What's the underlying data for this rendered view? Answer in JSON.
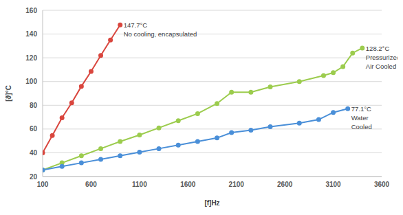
{
  "chart_data": {
    "type": "line",
    "x_label": "[f]Hz",
    "y_label": "[ϑ]°C",
    "xlim": [
      100,
      3600
    ],
    "xticks": [
      100,
      600,
      1100,
      1600,
      2100,
      2600,
      3100,
      3600
    ],
    "ylim": [
      20,
      160
    ],
    "yticks": [
      20,
      40,
      60,
      80,
      100,
      120,
      140,
      160
    ],
    "grid": true,
    "marker": "circle",
    "series": [
      {
        "annotation": [
          "147.7°C",
          "No cooling, encapsulated"
        ],
        "color": "#d9463e",
        "x": [
          100,
          200,
          300,
          400,
          500,
          600,
          700,
          800,
          900
        ],
        "values": [
          40,
          54.5,
          69.5,
          82,
          96,
          108.5,
          122,
          135,
          147.7
        ]
      },
      {
        "annotation": [
          "128.2°C",
          "Pressurized",
          "Air Cooled"
        ],
        "color": "#9ccc4e",
        "x": [
          100,
          300,
          500,
          700,
          900,
          1100,
          1300,
          1500,
          1700,
          1900,
          2050,
          2250,
          2450,
          2750,
          3000,
          3100,
          3200,
          3300,
          3400
        ],
        "values": [
          25.5,
          31.5,
          37.5,
          43.5,
          49.5,
          55,
          61,
          67,
          73,
          81.5,
          91,
          91,
          95.5,
          100,
          105,
          107.5,
          112.5,
          124,
          128.2
        ]
      },
      {
        "annotation": [
          "77.1°C",
          "Water",
          "Cooled"
        ],
        "color": "#4a8fd8",
        "x": [
          100,
          300,
          500,
          700,
          900,
          1100,
          1300,
          1500,
          1700,
          1900,
          2050,
          2250,
          2450,
          2750,
          2950,
          3100,
          3250
        ],
        "values": [
          25.5,
          28.5,
          31.5,
          34.5,
          37.5,
          40.5,
          43.5,
          46.5,
          49.5,
          52.5,
          57,
          59,
          62,
          65,
          68,
          74,
          77.1
        ]
      }
    ]
  }
}
